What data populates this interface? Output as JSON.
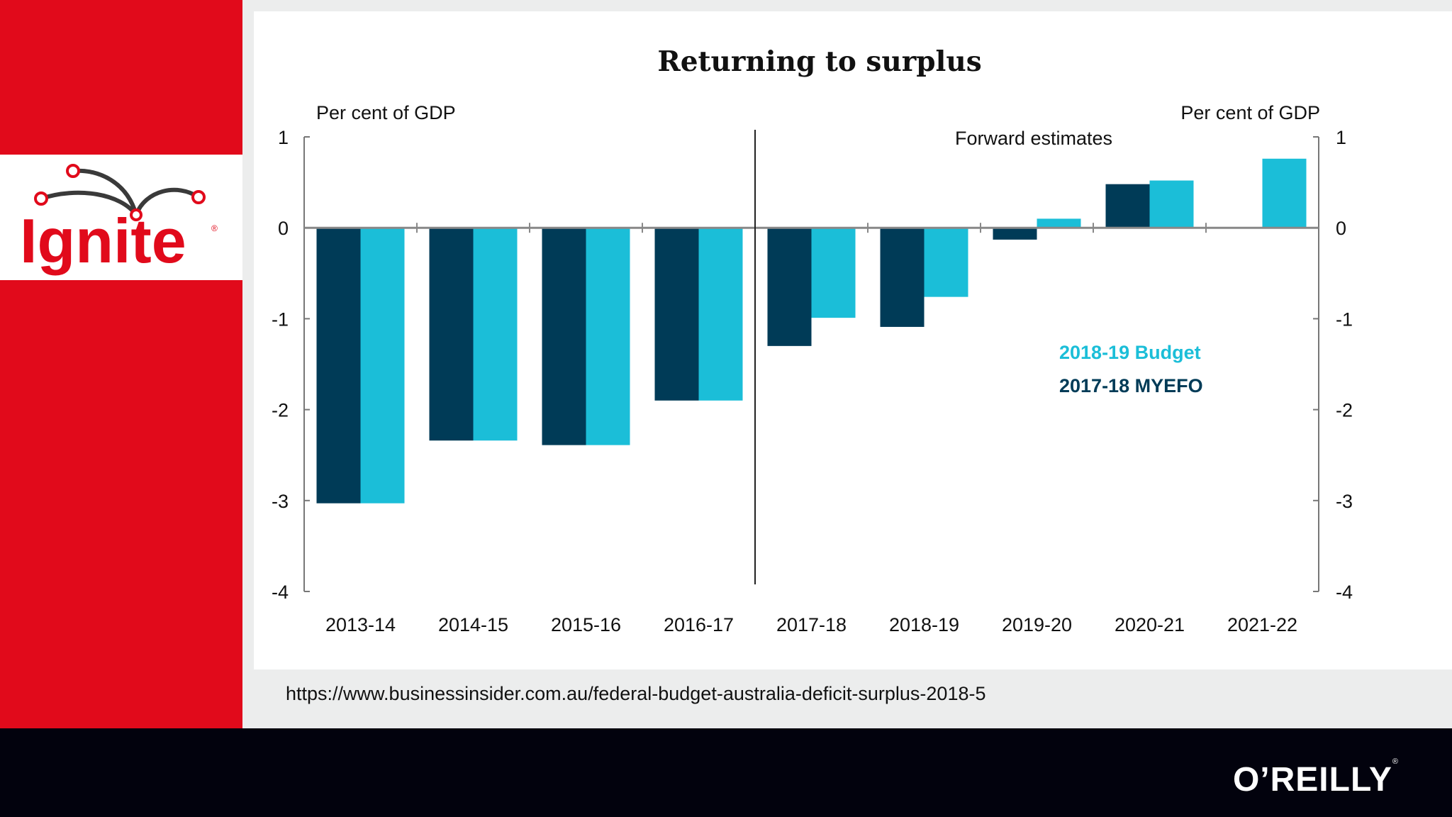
{
  "brand": {
    "logo_text": "Ignite",
    "publisher": "O’REILLY",
    "trademark": "®"
  },
  "source_url": "https://www.businessinsider.com.au/federal-budget-australia-deficit-surplus-2018-5",
  "colors": {
    "brand_red": "#e10a1b",
    "budget": "#1bbed8",
    "myefo": "#003b57",
    "footer": "#02020d"
  },
  "chart_data": {
    "type": "bar",
    "title": "Returning to surplus",
    "ylabel_left": "Per cent of GDP",
    "ylabel_right": "Per cent of GDP",
    "annotation": "Forward estimates",
    "categories": [
      "2013-14",
      "2014-15",
      "2015-16",
      "2016-17",
      "2017-18",
      "2018-19",
      "2019-20",
      "2020-21",
      "2021-22"
    ],
    "series": [
      {
        "name": "2017-18 MYEFO",
        "color": "#003b57",
        "values": [
          -3.03,
          -2.34,
          -2.39,
          -1.9,
          -1.3,
          -1.09,
          -0.13,
          0.48,
          null
        ]
      },
      {
        "name": "2018-19 Budget",
        "color": "#1bbed8",
        "values": [
          -3.03,
          -2.34,
          -2.39,
          -1.9,
          -0.99,
          -0.76,
          0.1,
          0.52,
          0.76
        ]
      }
    ],
    "ylim": [
      -4,
      1
    ],
    "yticks": [
      1,
      0,
      -1,
      -2,
      -3,
      -4
    ],
    "forward_estimates_start_index": 4,
    "legend_position": "right-center",
    "grid": false
  }
}
